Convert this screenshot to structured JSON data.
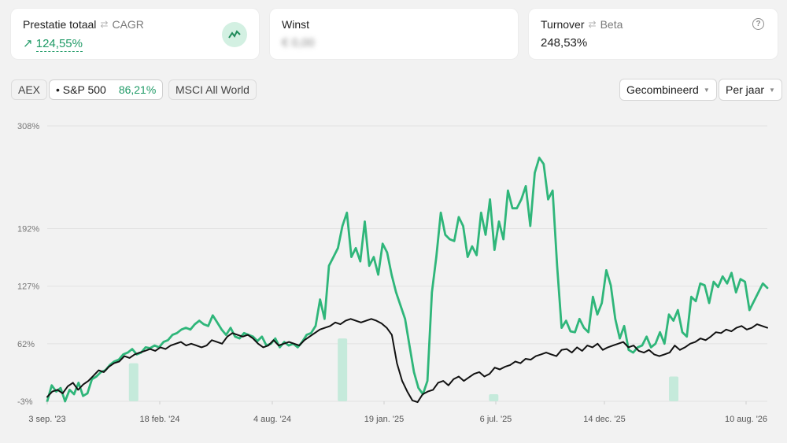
{
  "cards": {
    "performance": {
      "label": "Prestatie totaal",
      "alt_label": "CAGR",
      "value": "124,55%"
    },
    "profit": {
      "label": "Winst",
      "value": "€ 0,00"
    },
    "turnover": {
      "label": "Turnover",
      "alt_label": "Beta",
      "value": "248,53%"
    }
  },
  "benchmarks": [
    {
      "label": "AEX",
      "value": "",
      "active": false
    },
    {
      "label": "• S&P 500",
      "value": "86,21%",
      "active": true
    },
    {
      "label": "MSCI All World",
      "value": "",
      "active": false
    }
  ],
  "controls": {
    "mode": "Gecombineerd",
    "period": "Per jaar"
  },
  "chart_data": {
    "type": "line",
    "y_ticks": [
      "308%",
      "192%",
      "127%",
      "62%",
      "-3%"
    ],
    "x_ticks": [
      "3 sep. '23",
      "18 feb. '24",
      "4 aug. '24",
      "19 jan. '25",
      "6 jul. '25",
      "14 dec. '25",
      "10 aug. '26"
    ],
    "ylim": [
      -3,
      308
    ],
    "series": [
      {
        "name": "",
        "color": "#2fb67a",
        "values": [
          -3,
          15,
          8,
          12,
          -3,
          10,
          5,
          18,
          3,
          6,
          22,
          25,
          30,
          32,
          38,
          42,
          44,
          50,
          52,
          56,
          50,
          52,
          58,
          57,
          60,
          58,
          64,
          66,
          72,
          74,
          78,
          80,
          78,
          84,
          88,
          84,
          82,
          94,
          86,
          78,
          72,
          80,
          70,
          68,
          74,
          72,
          70,
          65,
          70,
          60,
          62,
          68,
          58,
          64,
          60,
          62,
          58,
          64,
          72,
          74,
          82,
          112,
          90,
          150,
          160,
          170,
          195,
          210,
          160,
          170,
          155,
          200,
          150,
          160,
          140,
          175,
          165,
          140,
          120,
          105,
          90,
          60,
          30,
          12,
          5,
          20,
          120,
          160,
          210,
          185,
          180,
          178,
          205,
          195,
          160,
          172,
          162,
          210,
          185,
          225,
          168,
          200,
          180,
          235,
          215,
          215,
          225,
          240,
          195,
          255,
          272,
          265,
          225,
          235,
          150,
          80,
          88,
          76,
          75,
          90,
          80,
          75,
          115,
          95,
          108,
          145,
          128,
          90,
          68,
          82,
          55,
          52,
          58,
          60,
          70,
          58,
          62,
          75,
          62,
          95,
          88,
          100,
          75,
          70,
          115,
          110,
          130,
          128,
          108,
          132,
          126,
          138,
          130,
          142,
          120,
          135,
          132,
          100,
          110,
          120,
          130,
          125
        ]
      },
      {
        "name": "",
        "color": "#111111",
        "values": [
          2,
          8,
          10,
          6,
          14,
          18,
          10,
          16,
          20,
          26,
          32,
          30,
          36,
          40,
          42,
          48,
          46,
          50,
          52,
          54,
          56,
          54,
          58,
          56,
          60,
          62,
          64,
          60,
          62,
          60,
          58,
          60,
          66,
          64,
          62,
          70,
          74,
          72,
          70,
          72,
          68,
          62,
          58,
          60,
          66,
          60,
          62,
          64,
          62,
          60,
          66,
          70,
          74,
          78,
          80,
          82,
          86,
          84,
          88,
          90,
          88,
          86,
          88,
          90,
          88,
          85,
          80,
          72,
          40,
          20,
          8,
          -2,
          -4,
          5,
          8,
          10,
          18,
          20,
          15,
          22,
          25,
          20,
          24,
          28,
          30,
          25,
          28,
          35,
          33,
          36,
          38,
          42,
          40,
          45,
          44,
          48,
          50,
          52,
          50,
          48,
          55,
          56,
          52,
          58,
          54,
          60,
          58,
          62,
          55,
          58,
          60,
          62,
          64,
          58,
          60,
          54,
          52,
          55,
          50,
          48,
          50,
          52,
          60,
          55,
          58,
          62,
          64,
          68,
          66,
          70,
          75,
          74,
          78,
          76,
          80,
          82,
          78,
          80,
          84,
          82,
          80
        ]
      }
    ],
    "highlights": [
      {
        "x_fraction": 0.12,
        "value": 40
      },
      {
        "x_fraction": 0.41,
        "value": 68
      },
      {
        "x_fraction": 0.62,
        "value": 5
      },
      {
        "x_fraction": 0.87,
        "value": 25
      }
    ]
  }
}
